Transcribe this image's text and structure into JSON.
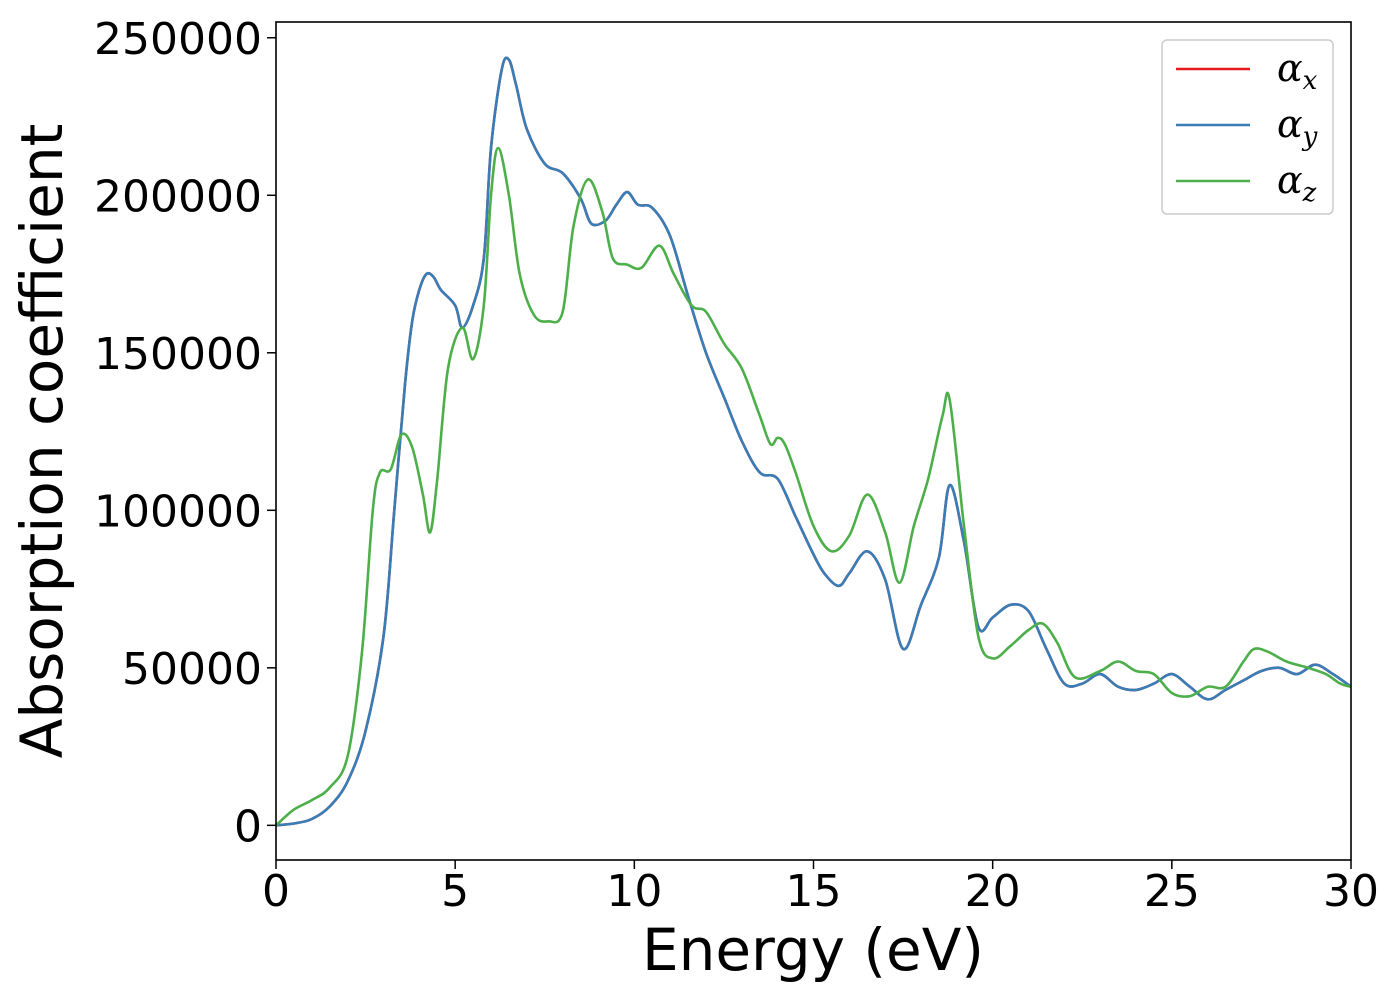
{
  "chart_data": {
    "type": "line",
    "title": "",
    "xlabel": "Energy (eV)",
    "ylabel": "Absorption coefficient",
    "xlim": [
      0,
      30
    ],
    "ylim": [
      -11000,
      255000
    ],
    "x_ticks": [
      0,
      5,
      10,
      15,
      20,
      25,
      30
    ],
    "x_tick_labels": [
      "0",
      "5",
      "10",
      "15",
      "20",
      "25",
      "30"
    ],
    "y_ticks": [
      0,
      50000,
      100000,
      150000,
      200000,
      250000
    ],
    "y_tick_labels": [
      "0",
      "50000",
      "100000",
      "150000",
      "200000",
      "250000"
    ],
    "grid": false,
    "legend_position": "top-right",
    "series": [
      {
        "name": "αx",
        "symbol": "α",
        "subscript": "x",
        "color": "#e41a1c",
        "x": [
          0,
          0.5,
          1,
          1.5,
          2,
          2.5,
          3,
          3.3,
          3.6,
          3.8,
          4,
          4.2,
          4.4,
          4.6,
          5,
          5.2,
          5.5,
          5.8,
          6,
          6.3,
          6.5,
          6.7,
          7,
          7.5,
          8,
          8.5,
          8.8,
          9.2,
          9.5,
          9.8,
          10.1,
          10.5,
          11,
          11.5,
          12,
          12.5,
          13,
          13.5,
          14,
          14.5,
          15,
          15.3,
          15.7,
          16,
          16.5,
          17,
          17.5,
          18,
          18.5,
          18.8,
          19.2,
          19.6,
          20,
          20.5,
          21,
          21.5,
          22,
          22.5,
          23,
          23.5,
          24,
          24.5,
          25,
          25.5,
          26,
          26.5,
          27,
          27.5,
          28,
          28.5,
          29,
          29.5,
          30
        ],
        "y": [
          0,
          600,
          2000,
          6000,
          14000,
          30000,
          60000,
          100000,
          140000,
          160000,
          170000,
          175000,
          174000,
          170000,
          165000,
          158000,
          165000,
          180000,
          215000,
          240000,
          243000,
          235000,
          221000,
          210000,
          207000,
          199000,
          191000,
          192000,
          197000,
          201000,
          197000,
          196000,
          187000,
          168000,
          150000,
          136000,
          122000,
          112000,
          110000,
          98000,
          86000,
          80000,
          76000,
          80000,
          87000,
          78000,
          56000,
          70000,
          85000,
          108000,
          90000,
          63000,
          66000,
          70000,
          68000,
          56000,
          45000,
          45000,
          48000,
          44000,
          43000,
          45000,
          48000,
          44000,
          40000,
          43000,
          46000,
          49000,
          50000,
          48000,
          51000,
          48000,
          44000
        ]
      },
      {
        "name": "αy",
        "symbol": "α",
        "subscript": "y",
        "color": "#377eb8",
        "x": [
          0,
          0.5,
          1,
          1.5,
          2,
          2.5,
          3,
          3.3,
          3.6,
          3.8,
          4,
          4.2,
          4.4,
          4.6,
          5,
          5.2,
          5.5,
          5.8,
          6,
          6.3,
          6.5,
          6.7,
          7,
          7.5,
          8,
          8.5,
          8.8,
          9.2,
          9.5,
          9.8,
          10.1,
          10.5,
          11,
          11.5,
          12,
          12.5,
          13,
          13.5,
          14,
          14.5,
          15,
          15.3,
          15.7,
          16,
          16.5,
          17,
          17.5,
          18,
          18.5,
          18.8,
          19.2,
          19.6,
          20,
          20.5,
          21,
          21.5,
          22,
          22.5,
          23,
          23.5,
          24,
          24.5,
          25,
          25.5,
          26,
          26.5,
          27,
          27.5,
          28,
          28.5,
          29,
          29.5,
          30
        ],
        "y": [
          0,
          600,
          2000,
          6000,
          14000,
          30000,
          60000,
          100000,
          140000,
          160000,
          170000,
          175000,
          174000,
          170000,
          165000,
          158000,
          165000,
          180000,
          215000,
          240000,
          243000,
          235000,
          221000,
          210000,
          207000,
          199000,
          191000,
          192000,
          197000,
          201000,
          197000,
          196000,
          187000,
          168000,
          150000,
          136000,
          122000,
          112000,
          110000,
          98000,
          86000,
          80000,
          76000,
          80000,
          87000,
          78000,
          56000,
          70000,
          85000,
          108000,
          90000,
          63000,
          66000,
          70000,
          68000,
          56000,
          45000,
          45000,
          48000,
          44000,
          43000,
          45000,
          48000,
          44000,
          40000,
          43000,
          46000,
          49000,
          50000,
          48000,
          51000,
          48000,
          44000
        ]
      },
      {
        "name": "αz",
        "symbol": "α",
        "subscript": "z",
        "color": "#4daf4a",
        "x": [
          0,
          0.5,
          1,
          1.5,
          2,
          2.4,
          2.7,
          2.9,
          3.2,
          3.5,
          3.8,
          4.1,
          4.3,
          4.5,
          4.8,
          5.2,
          5.5,
          5.8,
          6,
          6.2,
          6.5,
          6.8,
          7.2,
          7.6,
          8,
          8.3,
          8.7,
          9.1,
          9.4,
          9.8,
          10.2,
          10.7,
          11.1,
          11.6,
          12,
          12.5,
          13,
          13.5,
          13.8,
          14,
          14.2,
          14.5,
          15,
          15.5,
          16,
          16.5,
          17,
          17.4,
          17.8,
          18.2,
          18.6,
          18.8,
          19.2,
          19.6,
          20,
          20.5,
          21,
          21.4,
          21.8,
          22.3,
          23,
          23.5,
          24,
          24.5,
          25,
          25.5,
          26,
          26.5,
          27,
          27.3,
          27.7,
          28.2,
          28.8,
          29.3,
          29.7,
          30
        ],
        "y": [
          0,
          5000,
          8000,
          12000,
          22000,
          55000,
          100000,
          112000,
          113000,
          124000,
          120000,
          105000,
          93000,
          110000,
          145000,
          158000,
          148000,
          165000,
          200000,
          215000,
          200000,
          175000,
          162000,
          160000,
          163000,
          190000,
          205000,
          195000,
          180000,
          178000,
          177000,
          184000,
          175000,
          165000,
          163000,
          153000,
          145000,
          130000,
          121000,
          123000,
          121000,
          112000,
          95000,
          87000,
          92000,
          105000,
          93000,
          77000,
          95000,
          110000,
          130000,
          135000,
          95000,
          60000,
          53000,
          57000,
          62000,
          64000,
          58000,
          47000,
          49000,
          52000,
          49000,
          48000,
          42000,
          41000,
          44000,
          44000,
          52000,
          56000,
          55000,
          52000,
          50000,
          48000,
          45000,
          44000
        ]
      }
    ]
  }
}
